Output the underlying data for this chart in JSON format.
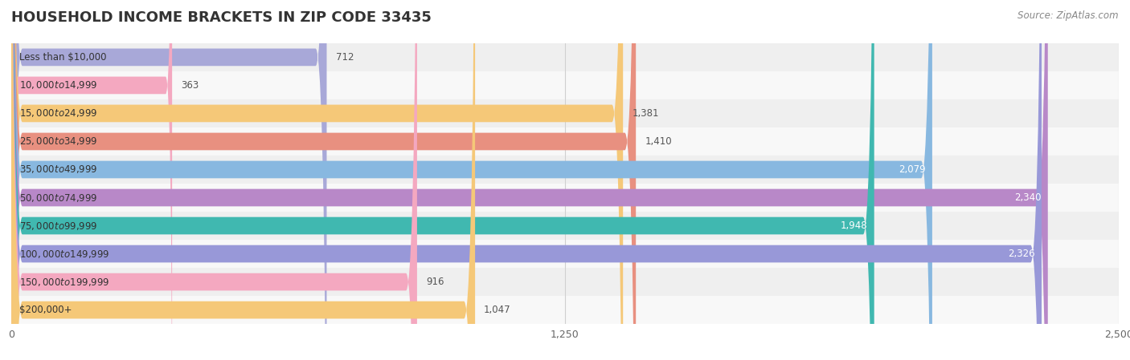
{
  "title": "HOUSEHOLD INCOME BRACKETS IN ZIP CODE 33435",
  "source": "Source: ZipAtlas.com",
  "categories": [
    "Less than $10,000",
    "$10,000 to $14,999",
    "$15,000 to $24,999",
    "$25,000 to $34,999",
    "$35,000 to $49,999",
    "$50,000 to $74,999",
    "$75,000 to $99,999",
    "$100,000 to $149,999",
    "$150,000 to $199,999",
    "$200,000+"
  ],
  "values": [
    712,
    363,
    1381,
    1410,
    2079,
    2340,
    1948,
    2326,
    916,
    1047
  ],
  "bar_colors": [
    "#a8a8d8",
    "#f4a8c0",
    "#f5c878",
    "#e89080",
    "#88b8e0",
    "#b888c8",
    "#40b8b0",
    "#9898d8",
    "#f4a8c0",
    "#f5c878"
  ],
  "bg_row_colors": [
    "#efefef",
    "#f8f8f8"
  ],
  "xlim": [
    0,
    2500
  ],
  "xticks": [
    0,
    1250,
    2500
  ],
  "title_fontsize": 13,
  "label_fontsize": 8.5,
  "value_fontsize": 8.5,
  "source_fontsize": 8.5,
  "background_color": "#ffffff"
}
